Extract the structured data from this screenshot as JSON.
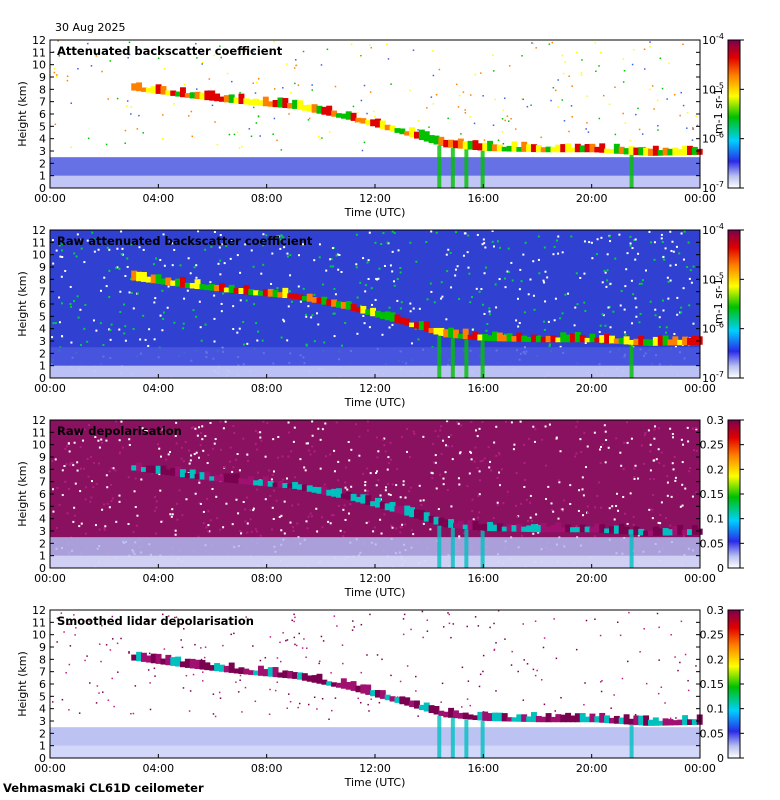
{
  "date": "30 Aug 2025",
  "footer": "Vehmasmaki CL61D ceilometer",
  "colors": {
    "ink": "#000000",
    "background": "#ffffff"
  },
  "chart_data": [
    {
      "type": "heatmap",
      "title": "Attenuated backscatter coefficient",
      "xlabel": "Time (UTC)",
      "ylabel": "Height (km)",
      "x_ticks": [
        "00:00",
        "04:00",
        "08:00",
        "12:00",
        "16:00",
        "20:00",
        "00:00"
      ],
      "y_ticks": [
        0,
        1,
        2,
        3,
        4,
        5,
        6,
        7,
        8,
        9,
        10,
        11,
        12
      ],
      "ylim": [
        0,
        12
      ],
      "colorbar": {
        "scale": "log",
        "ticks": [
          "10^-7",
          "10^-6",
          "10^-5",
          "10^-4"
        ],
        "unit": "m-1 sr-1"
      }
    },
    {
      "type": "heatmap",
      "title": "Raw attenuated backscatter coefficient",
      "xlabel": "Time (UTC)",
      "ylabel": "Height (km)",
      "x_ticks": [
        "00:00",
        "04:00",
        "08:00",
        "12:00",
        "16:00",
        "20:00",
        "00:00"
      ],
      "y_ticks": [
        0,
        1,
        2,
        3,
        4,
        5,
        6,
        7,
        8,
        9,
        10,
        11,
        12
      ],
      "ylim": [
        0,
        12
      ],
      "colorbar": {
        "scale": "log",
        "ticks": [
          "10^-7",
          "10^-6",
          "10^-5",
          "10^-4"
        ],
        "unit": "m-1 sr-1"
      }
    },
    {
      "type": "heatmap",
      "title": "Raw depolarisation",
      "xlabel": "Time (UTC)",
      "ylabel": "Height (km)",
      "x_ticks": [
        "00:00",
        "04:00",
        "08:00",
        "12:00",
        "16:00",
        "20:00",
        "00:00"
      ],
      "y_ticks": [
        0,
        1,
        2,
        3,
        4,
        5,
        6,
        7,
        8,
        9,
        10,
        11,
        12
      ],
      "ylim": [
        0,
        12
      ],
      "colorbar": {
        "scale": "linear",
        "ticks": [
          "0",
          "0.05",
          "0.1",
          "0.15",
          "0.2",
          "0.25",
          "0.3"
        ],
        "unit": ""
      }
    },
    {
      "type": "heatmap",
      "title": "Smoothed lidar depolarisation",
      "xlabel": "Time (UTC)",
      "ylabel": "Height (km)",
      "x_ticks": [
        "00:00",
        "04:00",
        "08:00",
        "12:00",
        "16:00",
        "20:00",
        "00:00"
      ],
      "y_ticks": [
        0,
        1,
        2,
        3,
        4,
        5,
        6,
        7,
        8,
        9,
        10,
        11,
        12
      ],
      "ylim": [
        0,
        12
      ],
      "colorbar": {
        "scale": "linear",
        "ticks": [
          "0",
          "0.05",
          "0.1",
          "0.15",
          "0.2",
          "0.25",
          "0.3"
        ],
        "unit": ""
      }
    }
  ],
  "features": {
    "cloud_layer_descending": {
      "times_h": [
        3,
        5,
        7,
        9,
        11,
        13,
        14.5,
        16,
        18,
        20,
        22,
        24
      ],
      "heights_km": [
        7.9,
        7.3,
        6.8,
        6.4,
        5.5,
        4.3,
        3.3,
        3.0,
        2.9,
        2.9,
        2.6,
        2.7
      ]
    },
    "boundary_layer_top_km": 2.5
  }
}
